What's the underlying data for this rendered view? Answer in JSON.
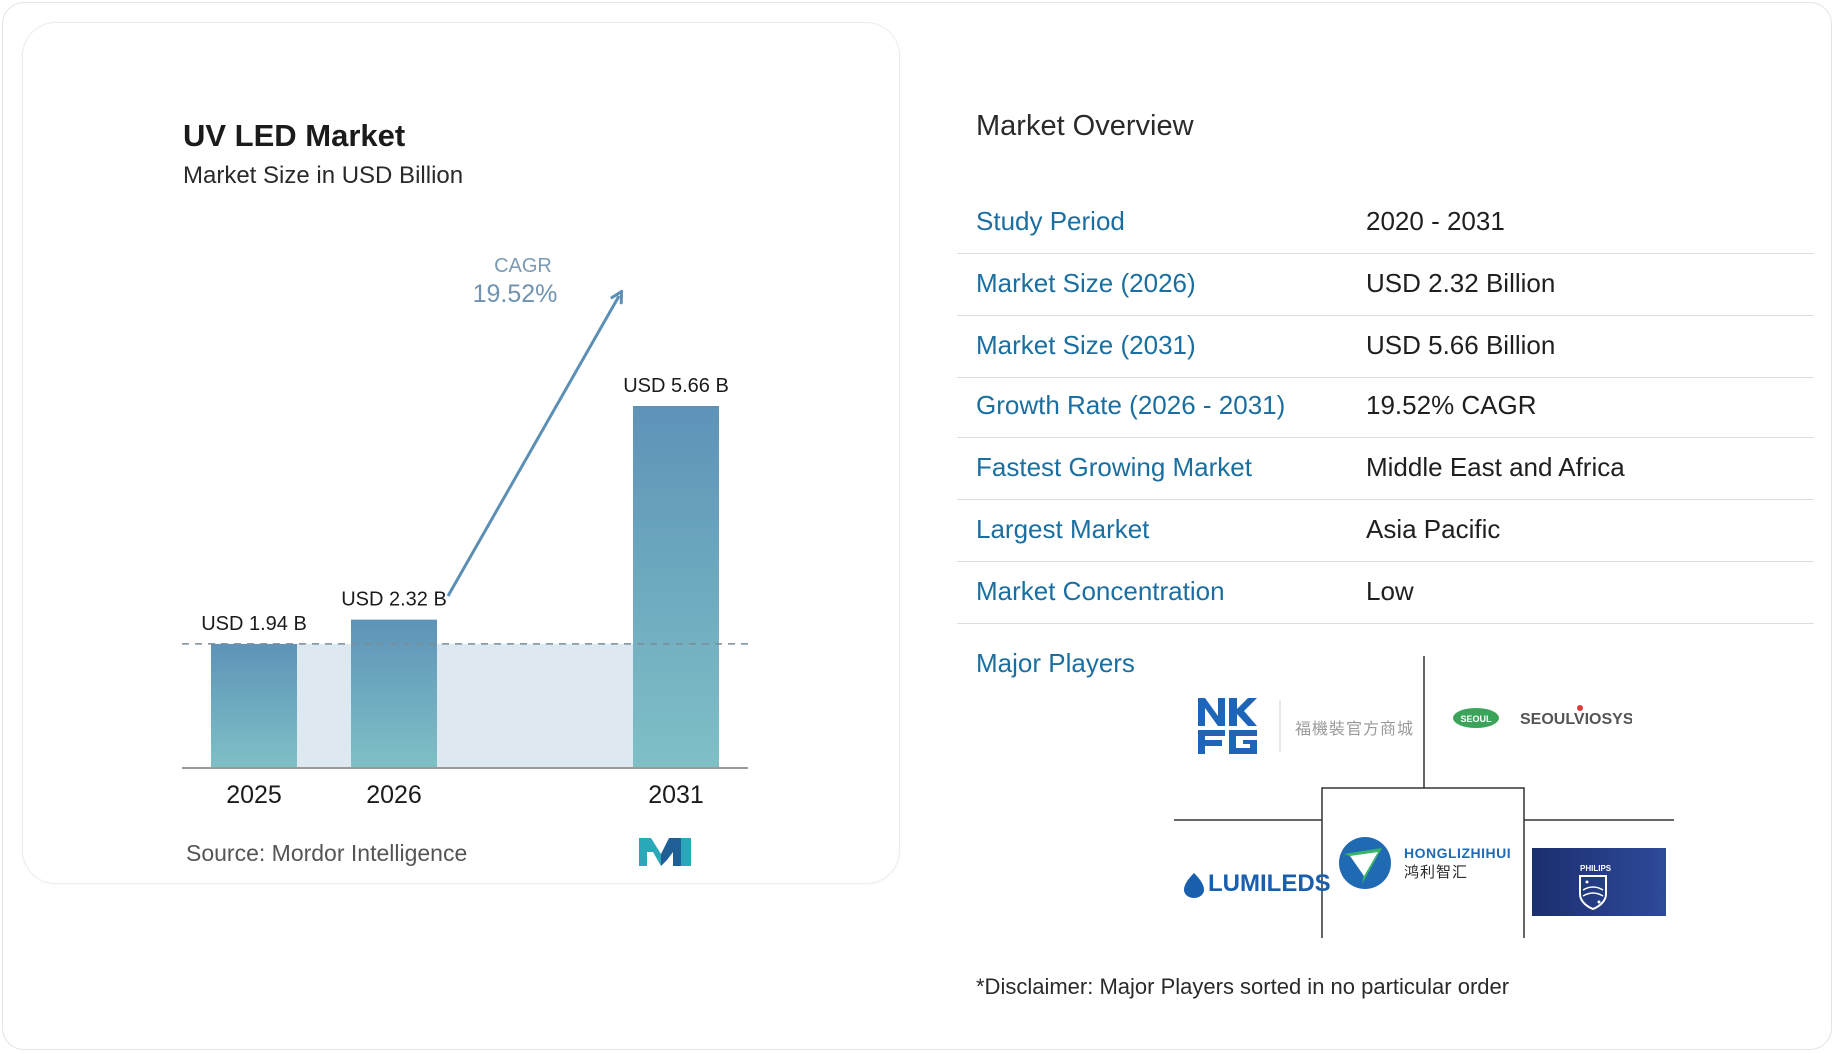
{
  "chart_data": {
    "type": "bar",
    "title": "UV LED Market",
    "subtitle": "Market Size in USD Billion",
    "categories": [
      "2025",
      "2026",
      "2031"
    ],
    "values": [
      1.94,
      2.32,
      5.66
    ],
    "data_labels": [
      "USD 1.94 B",
      "USD 2.32 B",
      "USD 5.66 B"
    ],
    "cagr_label": "CAGR",
    "cagr_value": "19.52%",
    "source": "Source:  Mordor Intelligence",
    "ylim": [
      0,
      6
    ],
    "colors": {
      "bar_top": "#5e93b8",
      "bar_bottom": "#7fc0c6",
      "band": "#dde8f1",
      "arrow": "#5d8fb5"
    }
  },
  "overview": {
    "title": "Market Overview",
    "rows": [
      {
        "label": "Study Period",
        "value": "2020 - 2031"
      },
      {
        "label": "Market Size (2026)",
        "value": "USD 2.32 Billion"
      },
      {
        "label": "Market Size (2031)",
        "value": "USD 5.66 Billion"
      },
      {
        "label": "Growth Rate (2026 - 2031)",
        "value": "19.52% CAGR"
      },
      {
        "label": "Fastest Growing Market",
        "value": "Middle East and Africa"
      },
      {
        "label": "Largest Market",
        "value": "Asia Pacific"
      },
      {
        "label": "Market Concentration",
        "value": "Low"
      }
    ],
    "players_label": "Major Players",
    "disclaimer": "*Disclaimer: Major Players sorted in no particular order"
  },
  "logos": {
    "nkfg_cn": "福機裝官方商城",
    "seoul": "SEOUL",
    "seoulviosys": "SEOULVIOSYS",
    "lumileds": "LUMILEDS",
    "hongli_en": "HONGLIZHIHUI",
    "hongli_cn": "鸿利智汇",
    "philips": "PHILIPS"
  }
}
